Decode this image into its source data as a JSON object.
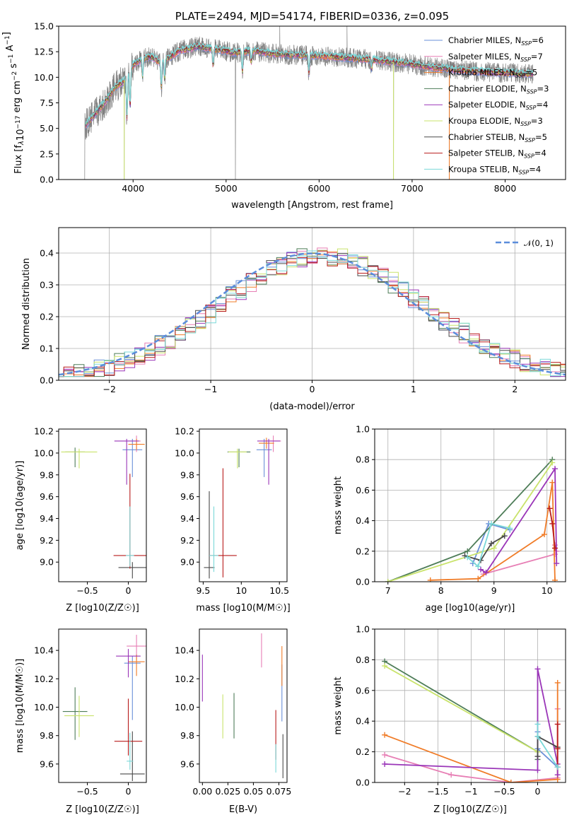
{
  "series_styles": [
    {
      "name": "Chabrier MILES",
      "n_ssp": "6",
      "color": "#6a8fd8"
    },
    {
      "name": "Salpeter MILES",
      "n_ssp": "7",
      "color": "#e77fb5"
    },
    {
      "name": "Kroupa MILES",
      "n_ssp": "5",
      "color": "#f07c28"
    },
    {
      "name": "Chabrier ELODIE",
      "n_ssp": "3",
      "color": "#4e7d58"
    },
    {
      "name": "Salpeter ELODIE",
      "n_ssp": "4",
      "color": "#9a35b8"
    },
    {
      "name": "Kroupa ELODIE",
      "n_ssp": "3",
      "color": "#c9e36b"
    },
    {
      "name": "Chabrier STELIB",
      "n_ssp": "5",
      "color": "#4a4a4a"
    },
    {
      "name": "Salpeter STELIB",
      "n_ssp": "4",
      "color": "#b81c1c"
    },
    {
      "name": "Kroupa STELIB",
      "n_ssp": "4",
      "color": "#7ad8d8"
    }
  ],
  "chart_data": [
    {
      "id": "spectrum",
      "type": "line",
      "title": "PLATE=2494, MJD=54174, FIBERID=0336, z=0.095",
      "xlabel": "wavelength [Angstrom, rest frame]",
      "ylabel": "Flux [f_λ 10^-17 erg cm^-2 s^-1 A^-1]",
      "xlim": [
        3200,
        8650
      ],
      "ylim": [
        0,
        15
      ],
      "xticks": [
        4000,
        5000,
        6000,
        7000,
        8000
      ],
      "yticks": [
        0.0,
        2.5,
        5.0,
        7.5,
        10.0,
        12.5,
        15.0
      ],
      "grid": false,
      "legend_position": "right",
      "data_color": "#808080",
      "continuum_x": [
        3480,
        3600,
        3700,
        3800,
        3900,
        4000,
        4100,
        4200,
        4300,
        4500,
        4700,
        4900,
        5100,
        5300,
        5500,
        5700,
        6000,
        6300,
        6600,
        6900,
        7200,
        7500,
        7800,
        8100,
        8300
      ],
      "continuum_y": [
        5.2,
        6.5,
        7.6,
        9.0,
        9.6,
        11.2,
        11.8,
        12.0,
        11.4,
        12.6,
        13.0,
        12.7,
        12.4,
        12.6,
        12.3,
        12.2,
        12.1,
        11.9,
        11.7,
        11.4,
        11.0,
        10.7,
        10.5,
        10.4,
        10.3
      ],
      "absorption_lines": [
        {
          "x": 3934,
          "depth": 4.5
        },
        {
          "x": 3968,
          "depth": 4.0
        },
        {
          "x": 4102,
          "depth": 2.0
        },
        {
          "x": 4304,
          "depth": 2.8
        },
        {
          "x": 4340,
          "depth": 2.0
        },
        {
          "x": 4861,
          "depth": 1.8
        },
        {
          "x": 5175,
          "depth": 2.2
        },
        {
          "x": 5270,
          "depth": 1.2
        },
        {
          "x": 5890,
          "depth": 2.0
        },
        {
          "x": 6563,
          "depth": 1.0
        }
      ],
      "data_spikes": [
        {
          "x": 3460,
          "y": 0.0
        },
        {
          "x": 3905,
          "y": 0.0
        },
        {
          "x": 5100,
          "y": 0.0
        },
        {
          "x": 5577,
          "y": 15.0
        },
        {
          "x": 6300,
          "y": 15.0
        },
        {
          "x": 6800,
          "y": 0.0
        },
        {
          "x": 7400,
          "y": 0.0
        }
      ]
    },
    {
      "id": "residuals",
      "type": "step",
      "xlabel": "(data-model)/error",
      "ylabel": "Normed distribution",
      "xlim": [
        -2.5,
        2.5
      ],
      "ylim": [
        0,
        0.48
      ],
      "xticks": [
        -2,
        -1,
        0,
        1,
        2
      ],
      "yticks": [
        0.0,
        0.1,
        0.2,
        0.3,
        0.4
      ],
      "grid": true,
      "bin_width": 0.1,
      "reference_label": "𝒩(0, 1)",
      "reference_color": "#5b8ddb",
      "legend_position": "top-right"
    },
    {
      "id": "age-vs-z",
      "type": "scatter",
      "xlabel": "Z [log10(Z/Z☉)]",
      "ylabel": "age  [log10(age/yr)]",
      "xlim": [
        -0.85,
        0.22
      ],
      "ylim": [
        8.82,
        10.22
      ],
      "xticks": [
        -0.5,
        0.0
      ],
      "yticks": [
        9.0,
        9.2,
        9.4,
        9.6,
        9.8,
        10.0,
        10.2
      ],
      "grid": false,
      "points": [
        {
          "series": 0,
          "x": 0.05,
          "y": 10.03,
          "xerr": 0.12,
          "yerr": [
            0.25,
            0.1
          ]
        },
        {
          "series": 1,
          "x": 0.1,
          "y": 10.11,
          "xerr": 0.05,
          "yerr": [
            0.1,
            0.05
          ]
        },
        {
          "series": 2,
          "x": 0.1,
          "y": 10.08,
          "xerr": 0.1,
          "yerr": [
            0.05,
            0.05
          ]
        },
        {
          "series": 3,
          "x": -0.65,
          "y": 10.01,
          "xerr": 0.12,
          "yerr": [
            0.14,
            0.04
          ]
        },
        {
          "series": 4,
          "x": -0.02,
          "y": 10.11,
          "xerr": 0.15,
          "yerr": [
            0.4,
            0.02
          ]
        },
        {
          "series": 5,
          "x": -0.6,
          "y": 10.01,
          "xerr": 0.22,
          "yerr": [
            0.15,
            0.03
          ]
        },
        {
          "series": 6,
          "x": 0.05,
          "y": 8.95,
          "xerr": 0.17,
          "yerr": [
            0.1,
            0.05
          ]
        },
        {
          "series": 7,
          "x": 0.02,
          "y": 9.06,
          "xerr": 0.2,
          "yerr": [
            0.12,
            0.75
          ]
        },
        {
          "series": 8,
          "x": 0.02,
          "y": 9.06,
          "xerr": 0.05,
          "yerr": [
            0.1,
            0.45
          ]
        }
      ]
    },
    {
      "id": "age-vs-mass",
      "type": "scatter",
      "xlabel": "mass [log10(M/M☉)]",
      "ylabel": "",
      "xlim": [
        9.45,
        10.6
      ],
      "ylim": [
        8.82,
        10.22
      ],
      "xticks": [
        9.5,
        10.0,
        10.5
      ],
      "yticks": [
        9.0,
        9.2,
        9.4,
        9.6,
        9.8,
        10.0,
        10.2
      ],
      "grid": false,
      "points": [
        {
          "series": 0,
          "x": 10.3,
          "y": 10.03,
          "xerr": 0.1,
          "yerr": [
            0.25,
            0.1
          ]
        },
        {
          "series": 1,
          "x": 10.42,
          "y": 10.11,
          "xerr": 0.1,
          "yerr": [
            0.1,
            0.05
          ]
        },
        {
          "series": 2,
          "x": 10.33,
          "y": 10.09,
          "xerr": 0.1,
          "yerr": [
            0.05,
            0.05
          ]
        },
        {
          "series": 3,
          "x": 9.97,
          "y": 10.01,
          "xerr": 0.15,
          "yerr": [
            0.14,
            0.03
          ]
        },
        {
          "series": 4,
          "x": 10.36,
          "y": 10.11,
          "xerr": 0.15,
          "yerr": [
            0.4,
            0.02
          ]
        },
        {
          "series": 5,
          "x": 9.95,
          "y": 10.01,
          "xerr": 0.12,
          "yerr": [
            0.15,
            0.03
          ]
        },
        {
          "series": 6,
          "x": 9.58,
          "y": 8.95,
          "xerr": 0.07,
          "yerr": [
            0.1,
            0.7
          ]
        },
        {
          "series": 7,
          "x": 9.76,
          "y": 9.06,
          "xerr": 0.18,
          "yerr": [
            0.2,
            0.8
          ]
        },
        {
          "series": 8,
          "x": 9.64,
          "y": 9.06,
          "xerr": 0.06,
          "yerr": [
            0.15,
            0.45
          ]
        }
      ]
    },
    {
      "id": "massweight-vs-age",
      "type": "line",
      "xlabel": "age  [log10(age/yr)]",
      "ylabel": "mass weight",
      "xlim": [
        6.75,
        10.35
      ],
      "ylim": [
        0,
        1
      ],
      "xticks": [
        7,
        8,
        9,
        10
      ],
      "yticks": [
        0.0,
        0.2,
        0.4,
        0.6,
        0.8,
        1.0
      ],
      "grid": true,
      "lines": [
        {
          "series": 0,
          "x": [
            8.6,
            8.9,
            9.3
          ],
          "y": [
            0.12,
            0.38,
            0.34
          ]
        },
        {
          "series": 1,
          "x": [
            8.8,
            10.15,
            10.15,
            10.18
          ],
          "y": [
            0.05,
            0.18,
            0.24,
            0.2
          ]
        },
        {
          "series": 2,
          "x": [
            7.8,
            8.7,
            9.95,
            10.1,
            10.15
          ],
          "y": [
            0.01,
            0.02,
            0.31,
            0.65,
            0.01
          ]
        },
        {
          "series": 3,
          "x": [
            7.0,
            8.5,
            10.1
          ],
          "y": [
            0.0,
            0.2,
            0.8
          ]
        },
        {
          "series": 4,
          "x": [
            8.75,
            8.85,
            10.15,
            10.18
          ],
          "y": [
            0.08,
            0.06,
            0.74,
            0.12
          ]
        },
        {
          "series": 5,
          "x": [
            7.0,
            9.0,
            10.1
          ],
          "y": [
            0.0,
            0.22,
            0.78
          ]
        },
        {
          "series": 6,
          "x": [
            8.45,
            8.75,
            8.95,
            9.2
          ],
          "y": [
            0.17,
            0.14,
            0.25,
            0.3
          ]
        },
        {
          "series": 7,
          "x": [
            10.05,
            10.1,
            10.15
          ],
          "y": [
            0.48,
            0.38,
            0.22
          ]
        },
        {
          "series": 8,
          "x": [
            8.5,
            8.7,
            8.95,
            9.3
          ],
          "y": [
            0.16,
            0.1,
            0.38,
            0.35
          ]
        }
      ]
    },
    {
      "id": "mass-vs-z",
      "type": "scatter",
      "xlabel": "Z [log10(Z/Z☉)]",
      "ylabel": "mass [log10(M/M☉)]",
      "xlim": [
        -0.85,
        0.22
      ],
      "ylim": [
        9.47,
        10.55
      ],
      "xticks": [
        -0.5,
        0.0
      ],
      "yticks": [
        9.6,
        9.8,
        10.0,
        10.2,
        10.4
      ],
      "grid": false,
      "points": [
        {
          "series": 0,
          "x": 0.05,
          "y": 10.31,
          "xerr": 0.1,
          "yerr": [
            0.4,
            0.05
          ]
        },
        {
          "series": 1,
          "x": 0.1,
          "y": 10.43,
          "xerr": 0.12,
          "yerr": [
            0.1,
            0.08
          ]
        },
        {
          "series": 2,
          "x": 0.1,
          "y": 10.32,
          "xerr": 0.1,
          "yerr": [
            0.1,
            0.05
          ]
        },
        {
          "series": 3,
          "x": -0.65,
          "y": 9.97,
          "xerr": 0.15,
          "yerr": [
            0.2,
            0.17
          ]
        },
        {
          "series": 4,
          "x": 0.0,
          "y": 10.36,
          "xerr": 0.15,
          "yerr": [
            0.15,
            0.05
          ]
        },
        {
          "series": 5,
          "x": -0.6,
          "y": 9.94,
          "xerr": 0.18,
          "yerr": [
            0.15,
            0.14
          ]
        },
        {
          "series": 6,
          "x": 0.05,
          "y": 9.53,
          "xerr": 0.15,
          "yerr": [
            0.05,
            0.3
          ]
        },
        {
          "series": 7,
          "x": 0.0,
          "y": 9.76,
          "xerr": 0.17,
          "yerr": [
            0.1,
            0.3
          ]
        },
        {
          "series": 8,
          "x": 0.02,
          "y": 9.62,
          "xerr": 0.04,
          "yerr": [
            0.06,
            0.2
          ]
        }
      ]
    },
    {
      "id": "mass-vs-ebv",
      "type": "scatter",
      "xlabel": "E(B-V)",
      "ylabel": "",
      "xlim": [
        -0.003,
        0.083
      ],
      "ylim": [
        9.47,
        10.55
      ],
      "xticks": [
        0.0,
        0.025,
        0.05,
        0.075
      ],
      "xticklabels": [
        "0.00",
        "0.025",
        "0.05",
        "0.075"
      ],
      "yticks": [
        9.6,
        9.8,
        10.0,
        10.2,
        10.4
      ],
      "grid": false,
      "points": [
        {
          "series": 0,
          "x": 0.078,
          "y": 10.2,
          "xerr": 0.0,
          "yerr": [
            0.3,
            0.1
          ]
        },
        {
          "series": 1,
          "x": 0.058,
          "y": 10.4,
          "xerr": 0.0,
          "yerr": [
            0.12,
            0.12
          ]
        },
        {
          "series": 2,
          "x": 0.078,
          "y": 10.3,
          "xerr": 0.0,
          "yerr": [
            0.15,
            0.13
          ]
        },
        {
          "series": 3,
          "x": 0.031,
          "y": 9.94,
          "xerr": 0.0,
          "yerr": [
            0.16,
            0.16
          ]
        },
        {
          "series": 4,
          "x": 0.0,
          "y": 10.22,
          "xerr": 0.0,
          "yerr": [
            0.18,
            0.15
          ]
        },
        {
          "series": 5,
          "x": 0.02,
          "y": 9.94,
          "xerr": 0.0,
          "yerr": [
            0.16,
            0.15
          ]
        },
        {
          "series": 6,
          "x": 0.079,
          "y": 9.65,
          "xerr": 0.0,
          "yerr": [
            0.15,
            0.16
          ]
        },
        {
          "series": 7,
          "x": 0.072,
          "y": 9.78,
          "xerr": 0.0,
          "yerr": [
            0.15,
            0.2
          ]
        },
        {
          "series": 8,
          "x": 0.072,
          "y": 9.64,
          "xerr": 0.0,
          "yerr": [
            0.1,
            0.1
          ]
        }
      ]
    },
    {
      "id": "massweight-vs-z",
      "type": "line",
      "xlabel": "Z [log10(Z/Z☉)]",
      "ylabel": "mass weight",
      "xlim": [
        -2.45,
        0.42
      ],
      "ylim": [
        0,
        1
      ],
      "xticks": [
        -2.0,
        -1.5,
        -1.0,
        -0.5,
        0.0
      ],
      "yticks": [
        0.0,
        0.2,
        0.4,
        0.6,
        0.8,
        1.0
      ],
      "grid": true,
      "lines": [
        {
          "series": 0,
          "x": [
            0.0,
            0.0,
            0.3
          ],
          "y": [
            0.33,
            0.22,
            0.1
          ]
        },
        {
          "series": 1,
          "x": [
            -2.3,
            -1.3,
            -0.4,
            0.3,
            0.3
          ],
          "y": [
            0.18,
            0.05,
            0.0,
            0.03,
            0.48
          ]
        },
        {
          "series": 2,
          "x": [
            -2.3,
            -0.4,
            0.3,
            0.3
          ],
          "y": [
            0.31,
            0.0,
            0.02,
            0.65
          ]
        },
        {
          "series": 3,
          "x": [
            -2.3,
            0.0,
            0.0
          ],
          "y": [
            0.79,
            0.2,
            0.15
          ]
        },
        {
          "series": 4,
          "x": [
            -2.3,
            0.0,
            0.0,
            0.3,
            0.3
          ],
          "y": [
            0.12,
            0.08,
            0.74,
            0.12,
            0.05
          ]
        },
        {
          "series": 5,
          "x": [
            -2.3,
            0.0,
            0.0
          ],
          "y": [
            0.76,
            0.2,
            0.2
          ]
        },
        {
          "series": 6,
          "x": [
            0.0,
            0.0,
            0.3
          ],
          "y": [
            0.17,
            0.3,
            0.23
          ]
        },
        {
          "series": 7,
          "x": [
            0.3,
            0.3,
            0.3
          ],
          "y": [
            0.38,
            0.22,
            0.1
          ]
        },
        {
          "series": 8,
          "x": [
            0.0,
            0.0,
            0.3
          ],
          "y": [
            0.38,
            0.3,
            0.1
          ]
        }
      ]
    }
  ]
}
